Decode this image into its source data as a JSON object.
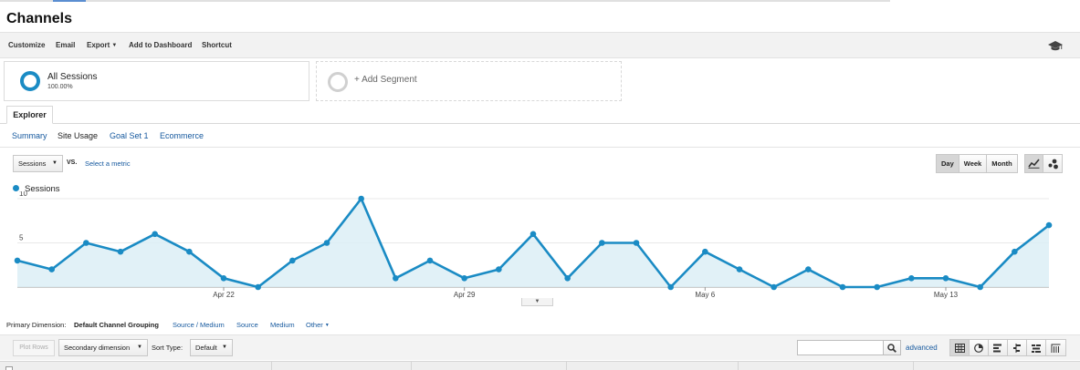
{
  "page": {
    "title": "Channels"
  },
  "toolbar": {
    "customize": "Customize",
    "email": "Email",
    "export": "Export",
    "add_to_dashboard": "Add to Dashboard",
    "shortcut": "Shortcut",
    "icon": "graduation-cap-icon"
  },
  "segments": {
    "active": {
      "name": "All Sessions",
      "percent": "100.00%"
    },
    "add_label": "+ Add Segment"
  },
  "tabs": {
    "explorer": "Explorer"
  },
  "subtabs": [
    "Summary",
    "Site Usage",
    "Goal Set 1",
    "Ecommerce"
  ],
  "chart_controls": {
    "metric": "Sessions",
    "vs": "VS.",
    "select_metric": "Select a metric",
    "ranges": [
      "Day",
      "Week",
      "Month"
    ],
    "active_range": "Day"
  },
  "colors": {
    "series": "#1a8bc4",
    "fill": "#dceef6",
    "link": "#15589e"
  },
  "chart_data": {
    "type": "area",
    "series": [
      {
        "name": "Sessions",
        "values": [
          3,
          2,
          5,
          4,
          6,
          4,
          1,
          0,
          3,
          5,
          10,
          1,
          3,
          1,
          2,
          6,
          1,
          5,
          5,
          0,
          4,
          2,
          0,
          2,
          0,
          0,
          1,
          1,
          0,
          4,
          7
        ]
      }
    ],
    "x_tick_labels": [
      {
        "index": 6,
        "label": "Apr 22"
      },
      {
        "index": 13,
        "label": "Apr 29"
      },
      {
        "index": 20,
        "label": "May 6"
      },
      {
        "index": 27,
        "label": "May 13"
      }
    ],
    "y_tick_labels": [
      "5",
      "10"
    ],
    "ylim": [
      0,
      10
    ],
    "grid": true,
    "legend": "top-left"
  },
  "primary_dimension": {
    "label": "Primary Dimension:",
    "items": [
      "Default Channel Grouping",
      "Source / Medium",
      "Source",
      "Medium",
      "Other"
    ]
  },
  "table_controls": {
    "plot_rows": "Plot Rows",
    "secondary_dimension": "Secondary dimension",
    "sort_type_label": "Sort Type:",
    "sort_type": "Default",
    "search_value": "",
    "advanced": "advanced"
  }
}
